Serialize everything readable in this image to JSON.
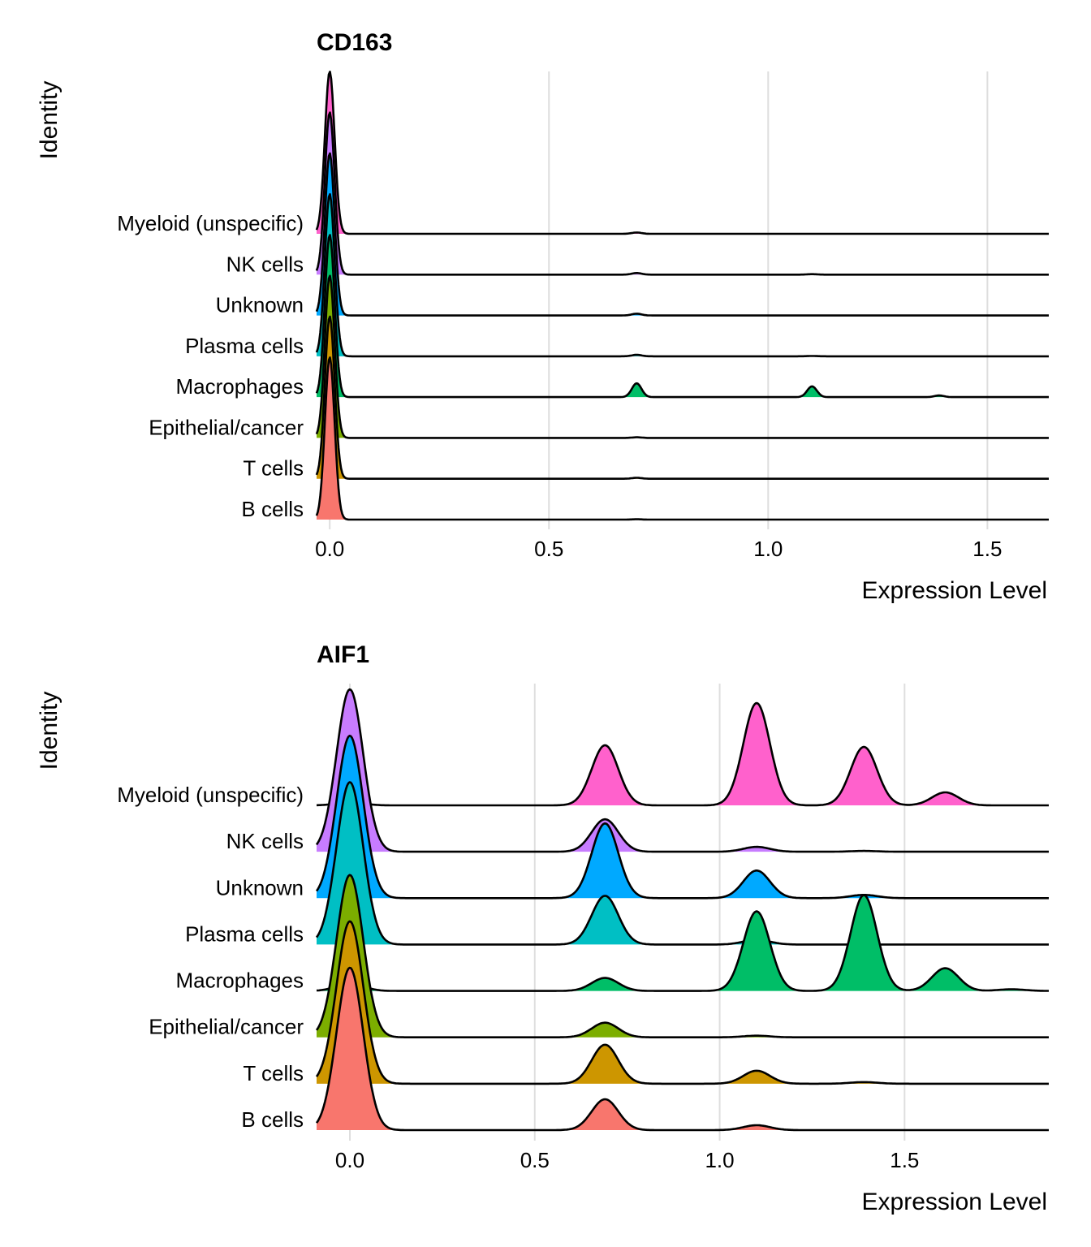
{
  "chart_data": [
    {
      "type": "ridgeline",
      "title": "CD163",
      "xlabel": "Expression Level",
      "ylabel": "Identity",
      "xlim": [
        -0.03,
        1.64
      ],
      "xticks": [
        0.0,
        0.5,
        1.0,
        1.5
      ],
      "xtick_labels": [
        "0.0",
        "0.5",
        "1.0",
        "1.5"
      ],
      "grid": true,
      "bandwidth": 0.011,
      "categories": [
        "B cells",
        "T cells",
        "Epithelial/cancer",
        "Macrophages",
        "Plasma cells",
        "Unknown",
        "NK cells",
        "Myeloid (unspecific)"
      ],
      "colors": [
        "#F8766D",
        "#CD9600",
        "#7CAE00",
        "#00BE67",
        "#00BFC4",
        "#00A9FF",
        "#C77CFF",
        "#FF61CC"
      ],
      "series": [
        {
          "name": "B cells",
          "modes": [
            [
              0.0,
              1.0
            ],
            [
              0.7,
              0.002
            ]
          ]
        },
        {
          "name": "T cells",
          "modes": [
            [
              0.0,
              1.0
            ],
            [
              0.7,
              0.006
            ]
          ]
        },
        {
          "name": "Epithelial/cancer",
          "modes": [
            [
              0.0,
              1.0
            ],
            [
              0.7,
              0.004
            ]
          ]
        },
        {
          "name": "Macrophages",
          "modes": [
            [
              0.0,
              1.0
            ],
            [
              0.7,
              0.085
            ],
            [
              1.1,
              0.066
            ],
            [
              1.39,
              0.01
            ]
          ]
        },
        {
          "name": "Plasma cells",
          "modes": [
            [
              0.0,
              1.0
            ],
            [
              0.7,
              0.009
            ],
            [
              1.1,
              0.002
            ]
          ]
        },
        {
          "name": "Unknown",
          "modes": [
            [
              0.0,
              1.0
            ],
            [
              0.7,
              0.011
            ]
          ]
        },
        {
          "name": "NK cells",
          "modes": [
            [
              0.0,
              1.0
            ],
            [
              0.7,
              0.01
            ],
            [
              1.1,
              0.003
            ]
          ]
        },
        {
          "name": "Myeloid (unspecific)",
          "modes": [
            [
              0.0,
              1.0
            ],
            [
              0.7,
              0.008
            ]
          ]
        }
      ]
    },
    {
      "type": "ridgeline",
      "title": "AIF1",
      "xlabel": "Expression Level",
      "ylabel": "Identity",
      "xlim": [
        -0.09,
        1.89
      ],
      "xticks": [
        0.0,
        0.5,
        1.0,
        1.5
      ],
      "xtick_labels": [
        "0.0",
        "0.5",
        "1.0",
        "1.5"
      ],
      "grid": true,
      "bandwidth": 0.036,
      "categories": [
        "B cells",
        "T cells",
        "Epithelial/cancer",
        "Macrophages",
        "Plasma cells",
        "Unknown",
        "NK cells",
        "Myeloid (unspecific)"
      ],
      "colors": [
        "#F8766D",
        "#CD9600",
        "#7CAE00",
        "#00BE67",
        "#00BFC4",
        "#00A9FF",
        "#C77CFF",
        "#FF61CC"
      ],
      "series": [
        {
          "name": "B cells",
          "modes": [
            [
              0.0,
              1.0
            ],
            [
              0.69,
              0.19
            ],
            [
              1.1,
              0.03
            ]
          ]
        },
        {
          "name": "T cells",
          "modes": [
            [
              0.0,
              1.0
            ],
            [
              0.69,
              0.24
            ],
            [
              1.1,
              0.08
            ],
            [
              1.39,
              0.01
            ]
          ]
        },
        {
          "name": "Epithelial/cancer",
          "modes": [
            [
              0.0,
              1.0
            ],
            [
              0.69,
              0.09
            ],
            [
              1.1,
              0.01
            ]
          ]
        },
        {
          "name": "Macrophages",
          "modes": [
            [
              0.0,
              0.05
            ],
            [
              0.69,
              0.08
            ],
            [
              1.1,
              0.49
            ],
            [
              1.39,
              0.59
            ],
            [
              1.61,
              0.14
            ],
            [
              1.79,
              0.01
            ]
          ]
        },
        {
          "name": "Plasma cells",
          "modes": [
            [
              0.0,
              1.0
            ],
            [
              0.69,
              0.3
            ],
            [
              1.1,
              0.03
            ]
          ]
        },
        {
          "name": "Unknown",
          "modes": [
            [
              0.0,
              1.0
            ],
            [
              0.69,
              0.46
            ],
            [
              1.1,
              0.17
            ],
            [
              1.39,
              0.02
            ]
          ]
        },
        {
          "name": "NK cells",
          "modes": [
            [
              0.0,
              1.0
            ],
            [
              0.69,
              0.2
            ],
            [
              1.1,
              0.03
            ],
            [
              1.39,
              0.005
            ]
          ]
        },
        {
          "name": "Myeloid (unspecific)",
          "modes": [
            [
              0.0,
              0.02
            ],
            [
              0.69,
              0.37
            ],
            [
              1.1,
              0.63
            ],
            [
              1.39,
              0.36
            ],
            [
              1.61,
              0.08
            ]
          ]
        }
      ]
    }
  ]
}
